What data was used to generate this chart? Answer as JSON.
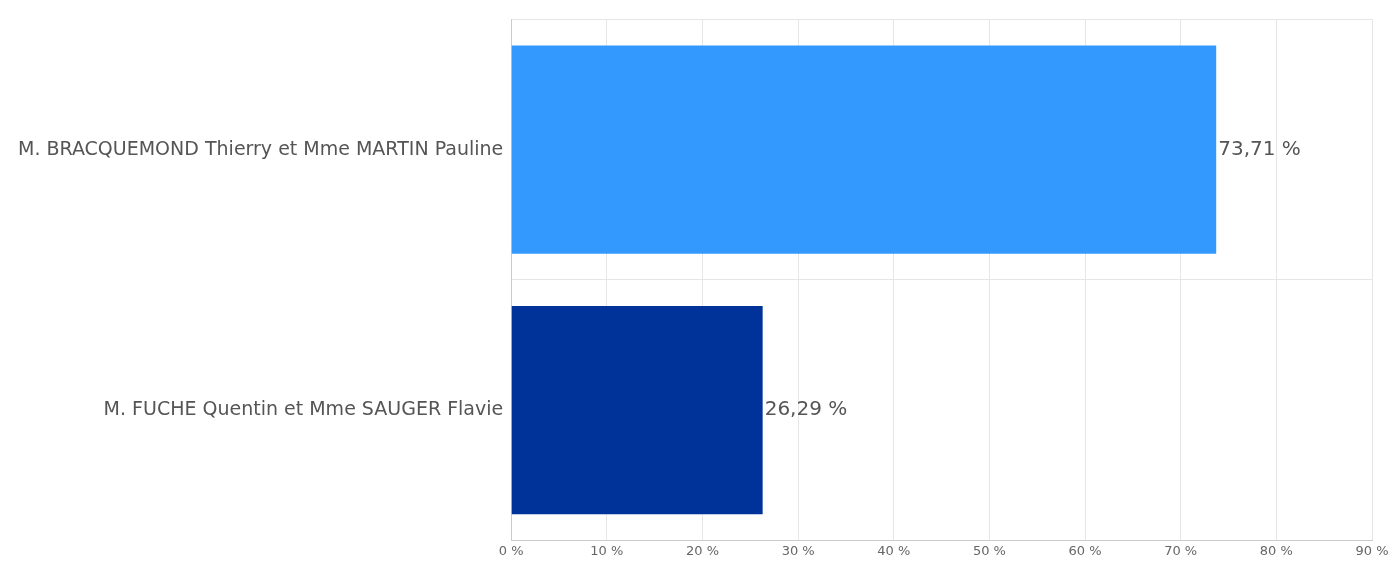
{
  "chart_data": {
    "type": "bar",
    "orientation": "horizontal",
    "categories": [
      "M. BRACQUEMOND Thierry et Mme MARTIN Pauline",
      "M. FUCHE Quentin et Mme SAUGER Flavie"
    ],
    "values": [
      73.71,
      26.29
    ],
    "colors": [
      "#3399ff",
      "#003399"
    ],
    "value_labels": [
      "73,71 %",
      "26,29 %"
    ],
    "xlim": [
      0,
      90
    ],
    "xticks": [
      {
        "value": 0,
        "label": "0 %"
      },
      {
        "value": 10,
        "label": "10 %"
      },
      {
        "value": 20,
        "label": "20 %"
      },
      {
        "value": 30,
        "label": "30 %"
      },
      {
        "value": 40,
        "label": "40 %"
      },
      {
        "value": 50,
        "label": "50 %"
      },
      {
        "value": 60,
        "label": "60 %"
      },
      {
        "value": 70,
        "label": "70 %"
      },
      {
        "value": 80,
        "label": "80 %"
      },
      {
        "value": 90,
        "label": "90 %"
      }
    ],
    "grid": true,
    "legend": false
  }
}
